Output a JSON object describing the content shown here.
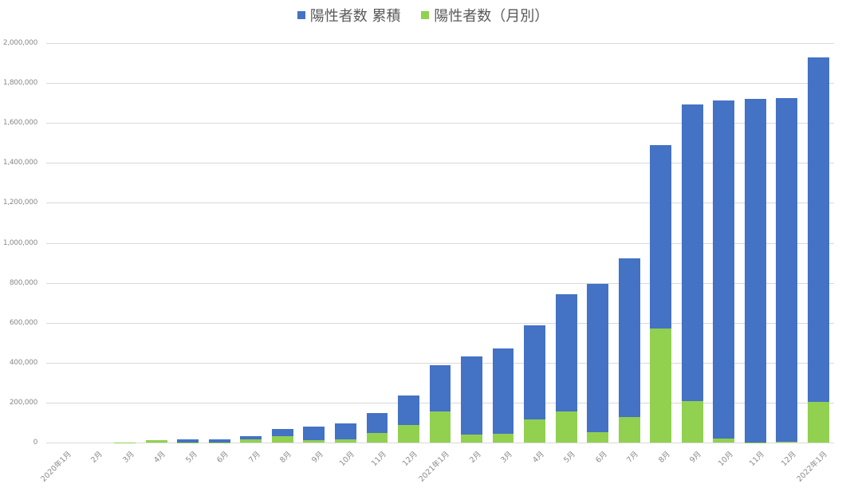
{
  "chart_data": {
    "type": "bar",
    "title": "",
    "xlabel": "",
    "ylabel": "",
    "ylim": [
      0,
      2000000
    ],
    "grid": true,
    "legend_position": "top",
    "stacking": "overlap",
    "yticks": [
      "0",
      "200,000",
      "400,000",
      "600,000",
      "800,000",
      "1,000,000",
      "1,200,000",
      "1,400,000",
      "1,600,000",
      "1,800,000",
      "2,000,000"
    ],
    "ytick_values": [
      0,
      200000,
      400000,
      600000,
      800000,
      1000000,
      1200000,
      1400000,
      1600000,
      1800000,
      2000000
    ],
    "categories": [
      "2020年1月",
      "2月",
      "3月",
      "4月",
      "5月",
      "6月",
      "7月",
      "8月",
      "9月",
      "10月",
      "11月",
      "12月",
      "2021年1月",
      "2月",
      "3月",
      "4月",
      "5月",
      "6月",
      "7月",
      "8月",
      "9月",
      "10月",
      "11月",
      "12月",
      "2022年1月"
    ],
    "series": [
      {
        "name": "陽性者数 累積",
        "color": "#4472C4",
        "values": [
          0,
          0,
          2000,
          14000,
          16000,
          18000,
          33000,
          66000,
          80000,
          97000,
          146000,
          234000,
          388000,
          430000,
          472000,
          588000,
          744000,
          795000,
          923000,
          1488000,
          1694000,
          1714000,
          1720000,
          1724000,
          1927000
        ]
      },
      {
        "name": "陽性者数（月別）",
        "color": "#92D050",
        "values": [
          0,
          0,
          2000,
          13000,
          2000,
          2000,
          16000,
          33000,
          14000,
          17000,
          49000,
          88000,
          155000,
          40000,
          43000,
          117000,
          156000,
          52000,
          128000,
          570000,
          206000,
          20000,
          2000,
          4000,
          203000
        ]
      }
    ]
  }
}
